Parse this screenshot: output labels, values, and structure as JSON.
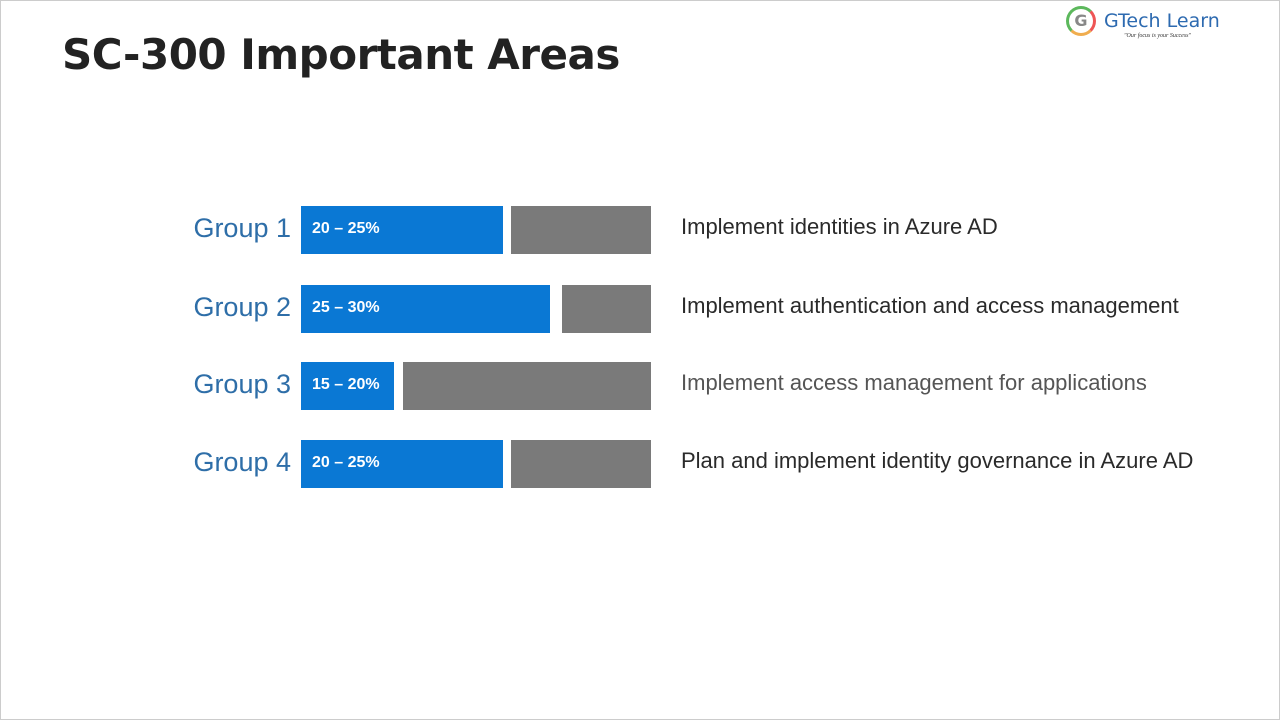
{
  "header": {
    "title": "SC-300 Important Areas"
  },
  "logo": {
    "name": "GTech Learn",
    "tagline": "\"Our focus is your Success\""
  },
  "groups": [
    {
      "label": "Group 1",
      "range": "20 – 25%",
      "description": "Implement identities in Azure AD"
    },
    {
      "label": "Group 2",
      "range": "25 – 30%",
      "description": "Implement authentication and access management"
    },
    {
      "label": "Group 3",
      "range": "15 – 20%",
      "description": "Implement access management for applications"
    },
    {
      "label": "Group 4",
      "range": "20 – 25%",
      "description": "Plan and implement identity governance in Azure AD"
    }
  ]
}
